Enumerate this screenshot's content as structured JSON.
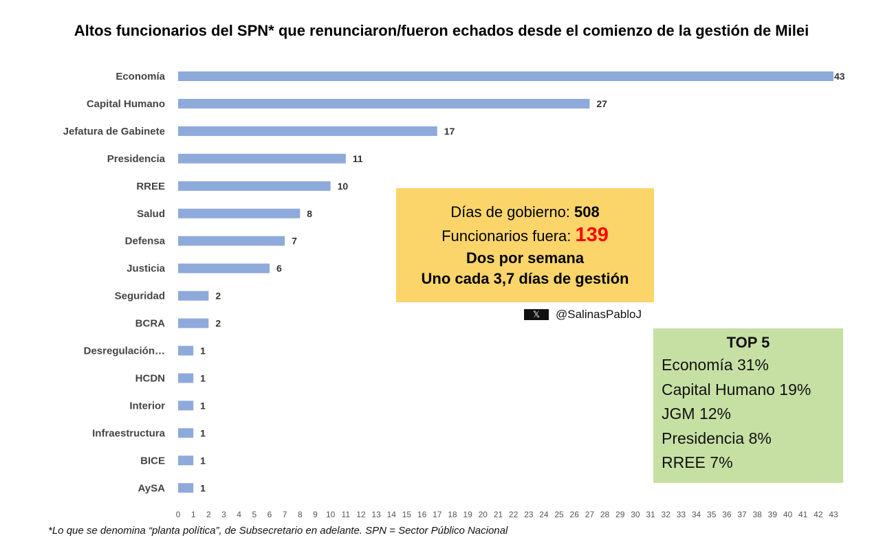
{
  "chart_data": {
    "type": "bar",
    "orientation": "horizontal",
    "title": "Altos funcionarios del SPN* que renunciaron/fueron echados desde el comienzo de la gestión de Milei",
    "categories": [
      "Economía",
      "Capital Humano",
      "Jefatura de Gabinete",
      "Presidencia",
      "RREE",
      "Salud",
      "Defensa",
      "Justicia",
      "Seguridad",
      "BCRA",
      "Desregulación…",
      "HCDN",
      "Interior",
      "Infraestructura",
      "BICE",
      "AySA"
    ],
    "values": [
      43,
      27,
      17,
      11,
      10,
      8,
      7,
      6,
      2,
      2,
      1,
      1,
      1,
      1,
      1,
      1
    ],
    "xlim": [
      0,
      43
    ],
    "xticks": [
      0,
      1,
      2,
      3,
      4,
      5,
      6,
      7,
      8,
      9,
      10,
      11,
      12,
      13,
      14,
      15,
      16,
      17,
      18,
      19,
      20,
      21,
      22,
      23,
      24,
      25,
      26,
      27,
      28,
      29,
      30,
      31,
      32,
      33,
      34,
      35,
      36,
      37,
      38,
      39,
      40,
      41,
      42,
      43
    ],
    "grid": false,
    "bar_color": "#8eaadb",
    "data_labels": true
  },
  "footnote": "*Lo que se denomina “planta política”, de Subsecretario en adelante. SPN = Sector Público Nacional",
  "summary_box": {
    "line1_label": "Días de gobierno: ",
    "line1_value": "508",
    "line2_label": "Funcionarios fuera: ",
    "line2_value": "139",
    "line3": "Dos por semana",
    "line4": "Uno cada 3,7 días de gestión",
    "bg_color": "#fbd56a",
    "highlight_color": "#ff0000"
  },
  "credit": {
    "icon": "x-logo-icon",
    "logo_text": "𝕏",
    "handle": "@SalinasPabloJ"
  },
  "top5": {
    "title": "TOP 5",
    "items": [
      "Economía 31%",
      "Capital Humano 19%",
      "JGM 12%",
      "Presidencia 8%",
      "RREE 7%"
    ],
    "bg_color": "#c6e0a4"
  }
}
